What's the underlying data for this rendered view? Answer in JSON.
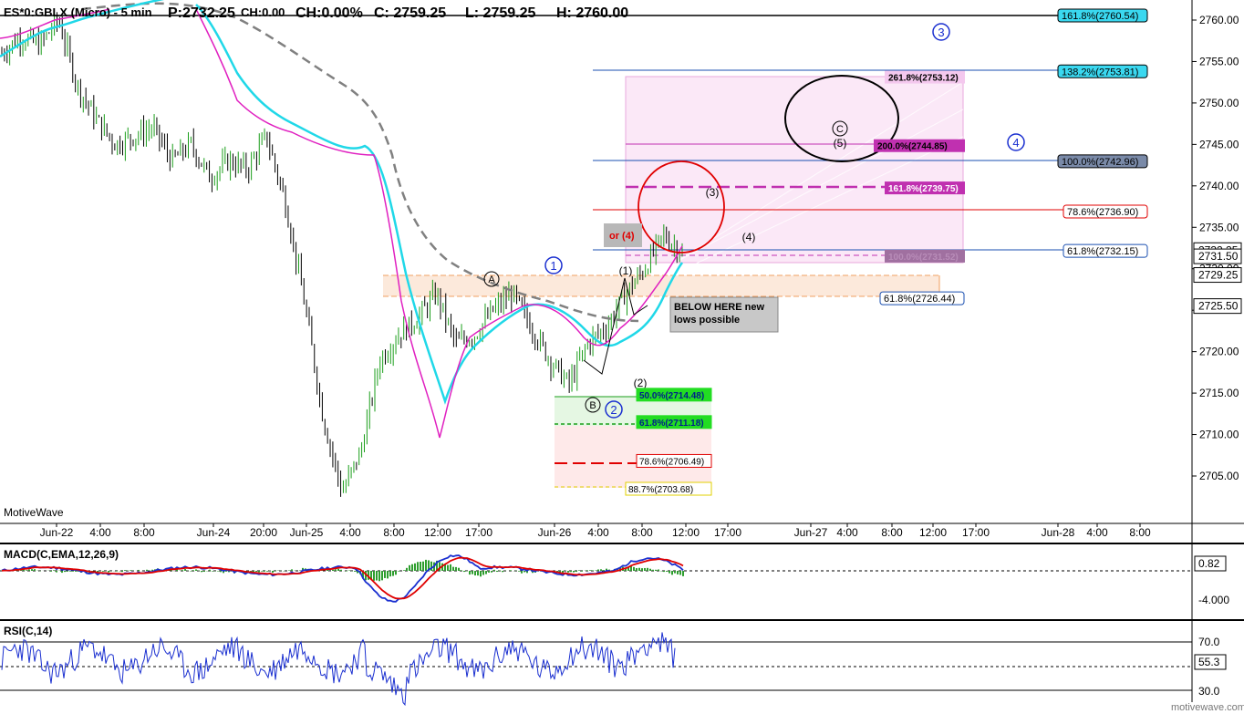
{
  "header": {
    "symbol": "ES*0:GBLX (Micro) - 5 min",
    "price": "P:2732.25",
    "change": "CH:0.00",
    "change_pct": "CH:0.00%",
    "close": "C: 2759.25",
    "low": "L: 2759.25",
    "high": "H: 2760.00"
  },
  "watermark": "MotiveWave",
  "footer_watermark": "motivewave.com",
  "price_axis": {
    "ticks": [
      "2760.00",
      "2755.00",
      "2750.00",
      "2745.00",
      "2740.00",
      "2735.00",
      "2730.00",
      "2725.00",
      "2720.00",
      "2715.00",
      "2710.00",
      "2705.00"
    ],
    "markers": [
      {
        "text": "2732.25",
        "value": 2732.25
      },
      {
        "text": "2731.50",
        "value": 2731.5
      },
      {
        "text": "2729.25",
        "value": 2729.25
      },
      {
        "text": "2725.50",
        "value": 2725.5
      }
    ]
  },
  "time_axis": [
    "Jun-22",
    "4:00",
    "8:00",
    "Jun-24",
    "20:00",
    "Jun-25",
    "4:00",
    "8:00",
    "12:00",
    "17:00",
    "Jun-26",
    "4:00",
    "8:00",
    "12:00",
    "17:00",
    "Jun-27",
    "4:00",
    "8:00",
    "12:00",
    "17:00",
    "Jun-28",
    "4:00",
    "8:00"
  ],
  "fib_levels_upper": [
    {
      "text": "161.8%(2760.54)",
      "value": 2760.54
    },
    {
      "text": "138.2%(2753.81)",
      "value": 2753.81
    },
    {
      "text": "100.0%(2742.96)",
      "value": 2742.96
    },
    {
      "text": "78.6%(2736.90)",
      "value": 2736.9
    },
    {
      "text": "61.8%(2732.15)",
      "value": 2732.15
    },
    {
      "text": "61.8%(2726.44)",
      "value": 2726.44
    }
  ],
  "fib_levels_box": [
    {
      "text": "261.8%(2753.12)",
      "value": 2753.12
    },
    {
      "text": "200.0%(2744.85)",
      "value": 2744.85
    },
    {
      "text": "161.8%(2739.75)",
      "value": 2739.75
    },
    {
      "text": "100.0%(2731.52)",
      "value": 2731.52
    }
  ],
  "fib_levels_lower": [
    {
      "text": "50.0%(2714.48)",
      "value": 2714.48
    },
    {
      "text": "61.8%(2711.18)",
      "value": 2711.18
    },
    {
      "text": "78.6%(2706.49)",
      "value": 2706.49
    },
    {
      "text": "88.7%(2703.68)",
      "value": 2703.68
    }
  ],
  "annotations": {
    "or4": "or (4)",
    "note": "BELOW HERE new lows possible"
  },
  "wave_labels": {
    "w1": "1",
    "w2": "2",
    "w3": "3",
    "w4": "4",
    "wA": "A",
    "wB": "B",
    "wC": "C",
    "s1": "(1)",
    "s2": "(2)",
    "s3": "(3)",
    "s4": "(4)",
    "s5": "(5)"
  },
  "macd": {
    "title": "MACD(C,EMA,12,26,9)",
    "axis": [
      "0.82",
      "-4.000"
    ]
  },
  "rsi": {
    "title": "RSI(C,14)",
    "axis": [
      "70.0",
      "55.3",
      "30.0"
    ]
  },
  "colors": {
    "up": "#1a9e1a",
    "down": "#000000",
    "ema_fast": "#e020c0",
    "ema_slow": "#20d8e8",
    "sma": "#808080",
    "wave_primary": "#1a2fd0",
    "circle_red": "#e00000",
    "macd_line": "#1a2fd0",
    "signal_line": "#e00000",
    "hist": "#2e9e2e"
  },
  "chart_data": {
    "type": "candlestick",
    "series": [
      {
        "name": "ES*0:GBLX (Micro) - 5 min",
        "values": [
          2756,
          2758,
          2757,
          2760,
          2752,
          2748,
          2745,
          2746,
          2747,
          2743,
          2745,
          2741,
          2743,
          2742,
          2746,
          2738,
          2726,
          2712,
          2703,
          2708,
          2719,
          2722,
          2724,
          2727,
          2721,
          2722,
          2725,
          2727,
          2723,
          2719,
          2716,
          2721,
          2723,
          2727,
          2730,
          2734,
          2732
        ]
      },
      {
        "name": "EMA fast",
        "values": []
      },
      {
        "name": "EMA slow",
        "values": []
      },
      {
        "name": "SMA",
        "values": []
      }
    ],
    "ylim": [
      2700,
      2762
    ],
    "price_range_label": "2703 - 2760"
  }
}
